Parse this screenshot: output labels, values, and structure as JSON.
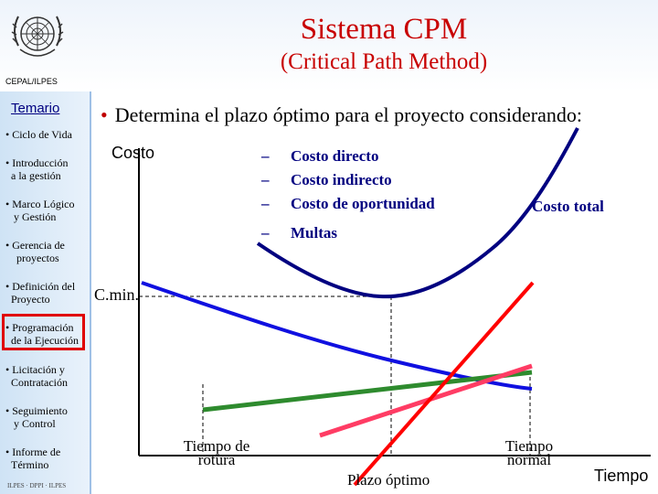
{
  "header": {
    "title": "Sistema CPM",
    "subtitle": "(Critical Path Method)",
    "org": "CEPAL/ILPES"
  },
  "sidebar": {
    "heading": "Temario",
    "items": [
      {
        "line1": "Ciclo de Vida",
        "line2": ""
      },
      {
        "line1": "Introducción",
        "line2": "a la gestión"
      },
      {
        "line1": "Marco Lógico",
        "line2": "y Gestión"
      },
      {
        "line1": "Gerencia de",
        "line2": "proyectos"
      },
      {
        "line1": "Definición del",
        "line2": "Proyecto"
      },
      {
        "line1": "Programación",
        "line2": "de la Ejecución"
      },
      {
        "line1": "Licitación y",
        "line2": "Contratación"
      },
      {
        "line1": "Seguimiento",
        "line2": "y Control"
      },
      {
        "line1": "Informe de",
        "line2": "Término"
      }
    ],
    "active_index": 5,
    "footer": "ILPES · DPPI · ILPES"
  },
  "main": {
    "bullet": "Determina el plazo óptimo para el proyecto considerando:",
    "y_axis_label": "Costo",
    "cost_items": [
      "Costo directo",
      "Costo indirecto",
      "Costo de oportunidad",
      "Multas"
    ],
    "total_label": "Costo total",
    "cmin_label": "C.min.",
    "x_labels": {
      "tiempo_rotura": "Tiempo de rotura",
      "plazo_optimo": "Plazo óptimo",
      "tiempo_normal": "Tiempo normal",
      "tiempo": "Tiempo"
    }
  },
  "chart_data": {
    "type": "line",
    "x_axis": "Tiempo",
    "y_axis": "Costo",
    "series": [
      {
        "name": "Costo total",
        "color": "#000080",
        "shape": "U-curve, minimum at Plazo óptimo"
      },
      {
        "name": "Costo directo",
        "color": "#1010e0",
        "shape": "decreasing"
      },
      {
        "name": "Costo indirecto",
        "color": "#2e8b2e",
        "shape": "increasing, shallow"
      },
      {
        "name": "Costo de oportunidad",
        "color": "#ff3c64",
        "shape": "increasing"
      },
      {
        "name": "Multas",
        "color": "#ff0000",
        "shape": "increasing, steep"
      }
    ],
    "marks": [
      "Tiempo de rotura",
      "Plazo óptimo",
      "Tiempo normal"
    ],
    "colors": {
      "title": "#c80000",
      "labels": "#000080",
      "highlight": "#e00000"
    }
  }
}
